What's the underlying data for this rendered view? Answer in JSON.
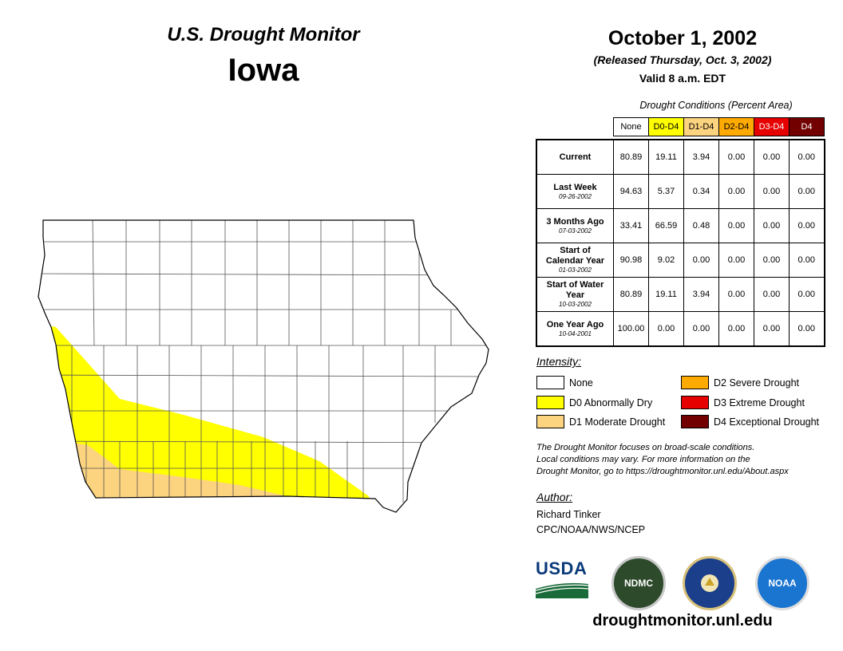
{
  "header": {
    "title": "U.S. Drought Monitor",
    "state": "Iowa",
    "date": "October 1, 2002",
    "released": "(Released Thursday, Oct. 3, 2002)",
    "valid": "Valid 8 a.m. EDT"
  },
  "table": {
    "caption": "Drought Conditions (Percent Area)",
    "columns": [
      {
        "label": "None",
        "bg": "#ffffff",
        "fg": "#000000"
      },
      {
        "label": "D0-D4",
        "bg": "#ffff00",
        "fg": "#000000"
      },
      {
        "label": "D1-D4",
        "bg": "#fcd37f",
        "fg": "#000000"
      },
      {
        "label": "D2-D4",
        "bg": "#ffaa00",
        "fg": "#000000"
      },
      {
        "label": "D3-D4",
        "bg": "#e60000",
        "fg": "#ffffff"
      },
      {
        "label": "D4",
        "bg": "#730000",
        "fg": "#ffffff"
      }
    ],
    "rows": [
      {
        "label": "Current",
        "date": "",
        "values": [
          "80.89",
          "19.11",
          "3.94",
          "0.00",
          "0.00",
          "0.00"
        ]
      },
      {
        "label": "Last Week",
        "date": "09-26-2002",
        "values": [
          "94.63",
          "5.37",
          "0.34",
          "0.00",
          "0.00",
          "0.00"
        ]
      },
      {
        "label": "3 Months Ago",
        "date": "07-03-2002",
        "values": [
          "33.41",
          "66.59",
          "0.48",
          "0.00",
          "0.00",
          "0.00"
        ]
      },
      {
        "label": "Start of Calendar Year",
        "date": "01-03-2002",
        "values": [
          "90.98",
          "9.02",
          "0.00",
          "0.00",
          "0.00",
          "0.00"
        ]
      },
      {
        "label": "Start of Water Year",
        "date": "10-03-2002",
        "values": [
          "80.89",
          "19.11",
          "3.94",
          "0.00",
          "0.00",
          "0.00"
        ]
      },
      {
        "label": "One Year Ago",
        "date": "10-04-2001",
        "values": [
          "100.00",
          "0.00",
          "0.00",
          "0.00",
          "0.00",
          "0.00"
        ]
      }
    ]
  },
  "legend": {
    "title": "Intensity:",
    "items": [
      {
        "label": "None",
        "color": "#ffffff"
      },
      {
        "label": "D0 Abnormally Dry",
        "color": "#ffff00"
      },
      {
        "label": "D1 Moderate Drought",
        "color": "#fcd37f"
      },
      {
        "label": "D2 Severe Drought",
        "color": "#ffaa00"
      },
      {
        "label": "D3 Extreme Drought",
        "color": "#e60000"
      },
      {
        "label": "D4 Exceptional Drought",
        "color": "#730000"
      }
    ]
  },
  "note": {
    "line1": "The Drought Monitor focuses on broad-scale conditions.",
    "line2": "Local conditions may vary. For more information on the",
    "line3": "Drought Monitor, go to https://droughtmonitor.unl.edu/About.aspx"
  },
  "author": {
    "title": "Author:",
    "name": "Richard Tinker",
    "org": "CPC/NOAA/NWS/NCEP"
  },
  "logos": {
    "usda": "USDA",
    "ndmc": "NDMC",
    "noaa": "NOAA"
  },
  "website": "droughtmonitor.unl.edu"
}
